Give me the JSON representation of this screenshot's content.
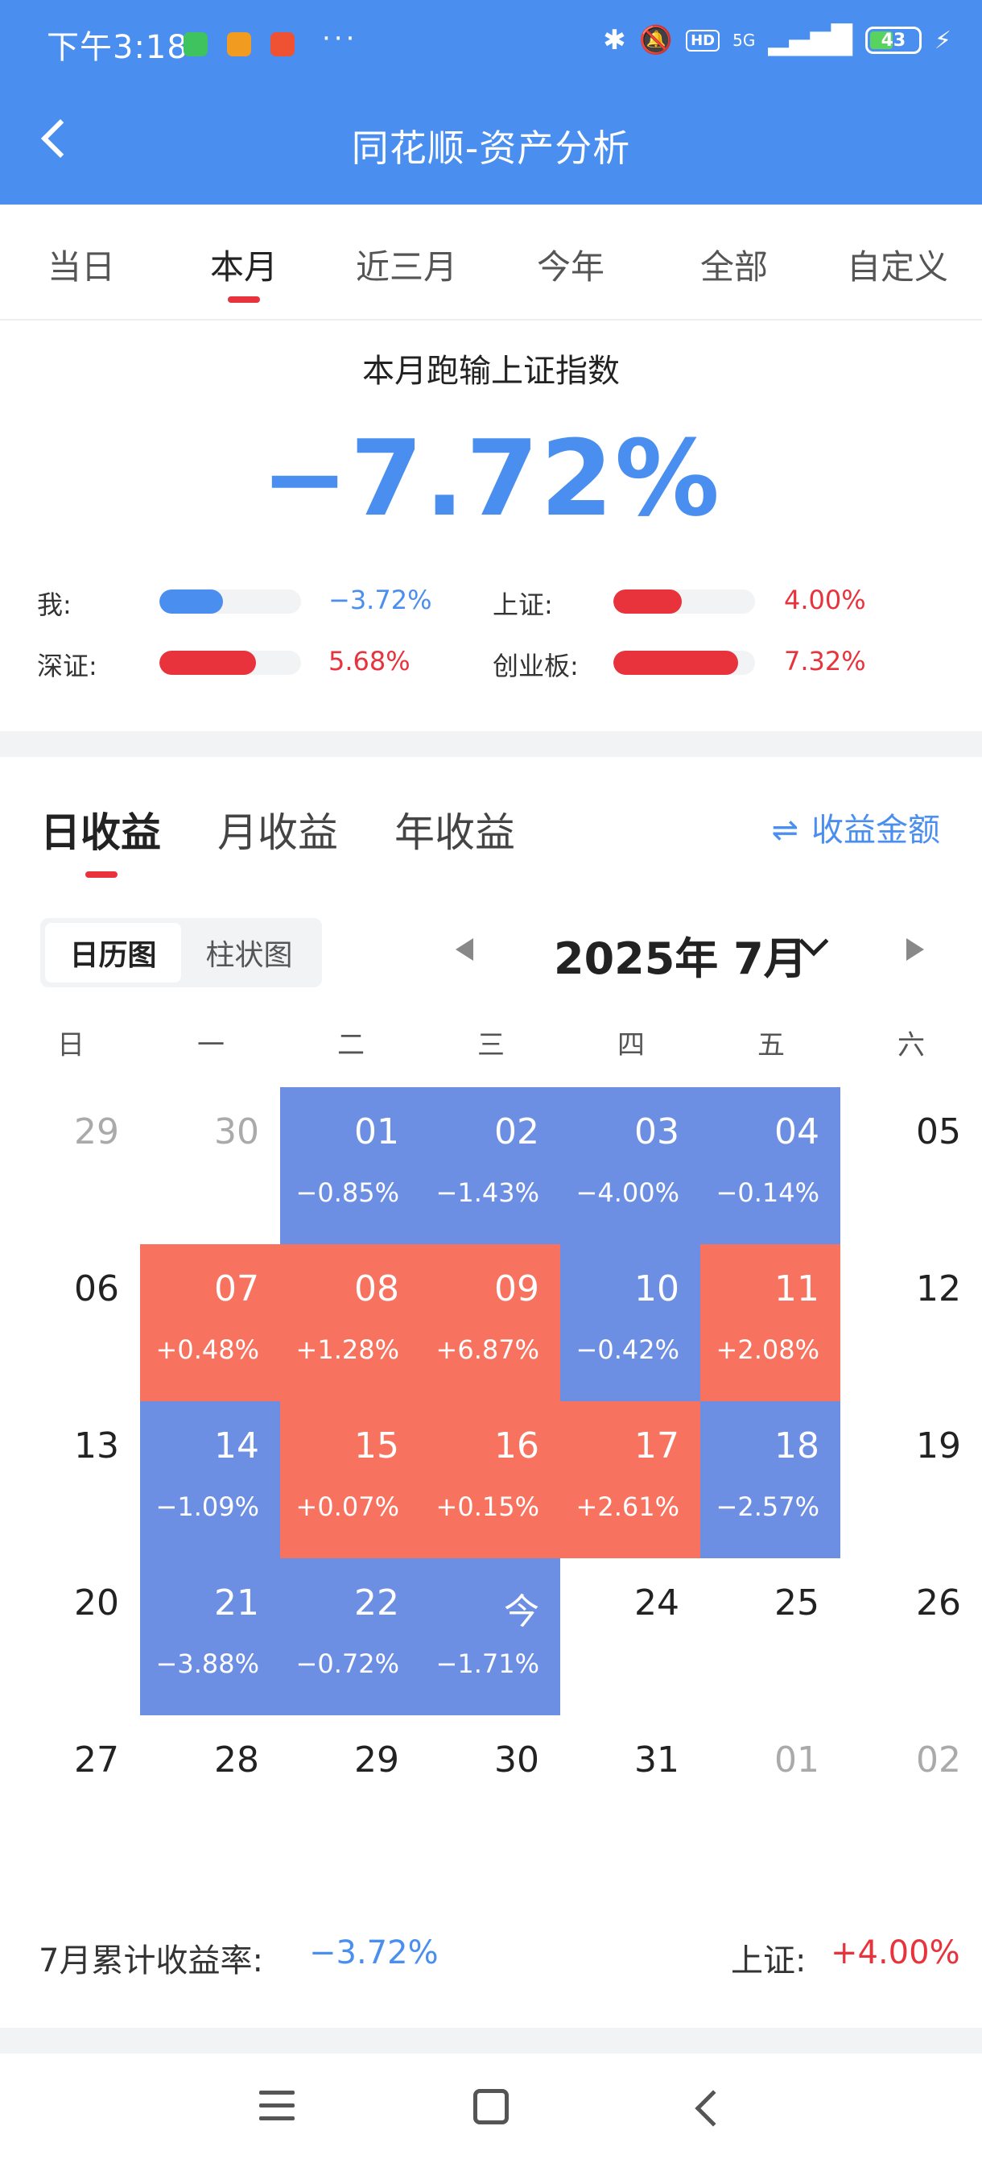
{
  "status_bar": {
    "time": "下午3:18",
    "more": "···",
    "network": "5G",
    "hd": "HD",
    "battery": "43",
    "icons": [
      "wechat-icon",
      "app-notification-icon",
      "app-notification-icon",
      "bluetooth-icon",
      "bell-muted-icon",
      "signal-icon",
      "battery-icon",
      "charging-icon"
    ]
  },
  "header": {
    "title": "同花顺-资产分析"
  },
  "period_tabs": [
    {
      "label": "当日"
    },
    {
      "label": "本月",
      "active": true
    },
    {
      "label": "近三月"
    },
    {
      "label": "今年"
    },
    {
      "label": "全部"
    },
    {
      "label": "自定义"
    }
  ],
  "summary": {
    "title": "本月跑输上证指数",
    "value": "−7.72%",
    "comparisons": [
      {
        "label": "我:",
        "value": "−3.72%",
        "level": 3.72,
        "color": "#4a8ff0"
      },
      {
        "label": "上证:",
        "value": "4.00%",
        "level": 4.0,
        "color": "#e8323c"
      },
      {
        "label": "深证:",
        "value": "5.68%",
        "level": 5.68,
        "color": "#e8323c"
      },
      {
        "label": "创业板:",
        "value": "7.32%",
        "level": 7.32,
        "color": "#e8323c"
      }
    ]
  },
  "earnings": {
    "tabs": [
      {
        "label": "日收益",
        "active": true
      },
      {
        "label": "月收益"
      },
      {
        "label": "年收益"
      }
    ],
    "amount_toggle": {
      "icon": "⇌",
      "label": "收益金额"
    },
    "view_toggle": [
      {
        "label": "日历图",
        "active": true
      },
      {
        "label": "柱状图"
      }
    ],
    "month_label": "2025年 7月",
    "weekdays": [
      "日",
      "一",
      "二",
      "三",
      "四",
      "五",
      "六"
    ],
    "calendar": [
      [
        {
          "d": "29",
          "muted": true
        },
        {
          "d": "30",
          "muted": true
        },
        {
          "d": "01",
          "p": "−0.85%",
          "t": "loss"
        },
        {
          "d": "02",
          "p": "−1.43%",
          "t": "loss"
        },
        {
          "d": "03",
          "p": "−4.00%",
          "t": "loss"
        },
        {
          "d": "04",
          "p": "−0.14%",
          "t": "loss"
        },
        {
          "d": "05"
        }
      ],
      [
        {
          "d": "06"
        },
        {
          "d": "07",
          "p": "+0.48%",
          "t": "gain"
        },
        {
          "d": "08",
          "p": "+1.28%",
          "t": "gain"
        },
        {
          "d": "09",
          "p": "+6.87%",
          "t": "gain"
        },
        {
          "d": "10",
          "p": "−0.42%",
          "t": "loss"
        },
        {
          "d": "11",
          "p": "+2.08%",
          "t": "gain"
        },
        {
          "d": "12"
        }
      ],
      [
        {
          "d": "13"
        },
        {
          "d": "14",
          "p": "−1.09%",
          "t": "loss"
        },
        {
          "d": "15",
          "p": "+0.07%",
          "t": "gain"
        },
        {
          "d": "16",
          "p": "+0.15%",
          "t": "gain"
        },
        {
          "d": "17",
          "p": "+2.61%",
          "t": "gain"
        },
        {
          "d": "18",
          "p": "−2.57%",
          "t": "loss"
        },
        {
          "d": "19"
        }
      ],
      [
        {
          "d": "20"
        },
        {
          "d": "21",
          "p": "−3.88%",
          "t": "loss"
        },
        {
          "d": "22",
          "p": "−0.72%",
          "t": "loss"
        },
        {
          "d": "今",
          "p": "−1.71%",
          "t": "loss"
        },
        {
          "d": "24"
        },
        {
          "d": "25"
        },
        {
          "d": "26"
        }
      ],
      [
        {
          "d": "27"
        },
        {
          "d": "28"
        },
        {
          "d": "29"
        },
        {
          "d": "30"
        },
        {
          "d": "31"
        },
        {
          "d": "01",
          "muted": true
        },
        {
          "d": "02",
          "muted": true
        }
      ]
    ],
    "footer": {
      "cumulative_label": "7月累计收益率:",
      "cumulative_value": "−3.72%",
      "index_label": "上证:",
      "index_value": "+4.00%"
    },
    "colors": {
      "loss": "#6d8fe3",
      "gain": "#f8735f"
    }
  },
  "navbar": {
    "icons": [
      "menu-icon",
      "home-icon",
      "back-icon"
    ]
  }
}
